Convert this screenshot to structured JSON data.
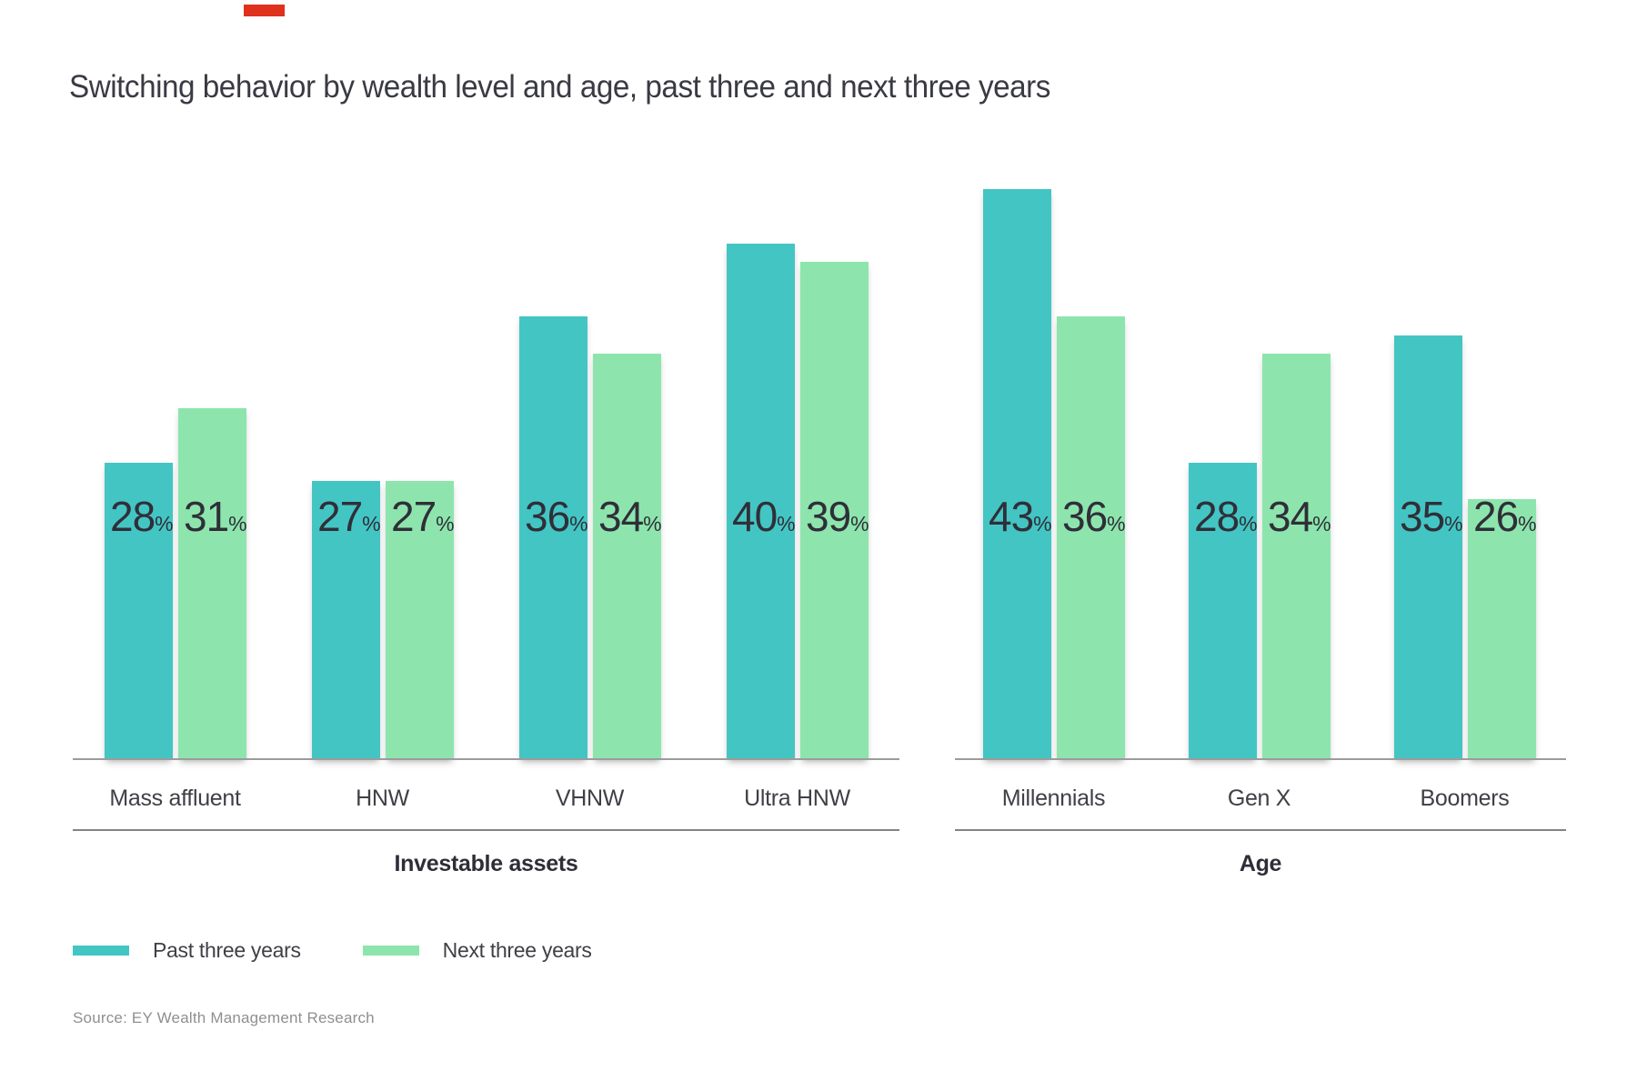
{
  "page": {
    "background": "#ffffff"
  },
  "decoration": {
    "red_mark_color": "#e0301e"
  },
  "title": "Switching behavior by wealth level and age, past three and next three years",
  "chart_data": {
    "type": "bar",
    "unit": "%",
    "title": "Switching behavior by wealth level and age, past three and next three years",
    "value_axis": {
      "visible": false,
      "zero_based": false,
      "data_labels": "inside-bars"
    },
    "colors": {
      "past": "#43c5c4",
      "next": "#8de5ad"
    },
    "legend_position": "bottom-left",
    "legend": [
      {
        "label": "Past three years",
        "color": "#43c5c4"
      },
      {
        "label": "Next three years",
        "color": "#8de5ad"
      }
    ],
    "groups": [
      {
        "label": "Investable assets",
        "categories": [
          "Mass affluent",
          "HNW",
          "VHNW",
          "Ultra HNW"
        ],
        "series": [
          {
            "name": "Past three years",
            "values": [
              28,
              27,
              36,
              40
            ]
          },
          {
            "name": "Next three years",
            "values": [
              31,
              27,
              34,
              39
            ]
          }
        ]
      },
      {
        "label": "Age",
        "categories": [
          "Millennials",
          "Gen X",
          "Boomers"
        ],
        "series": [
          {
            "name": "Past three years",
            "values": [
              43,
              28,
              35
            ]
          },
          {
            "name": "Next three years",
            "values": [
              36,
              34,
              26
            ]
          }
        ]
      }
    ]
  },
  "source": "Source: EY Wealth Management Research"
}
